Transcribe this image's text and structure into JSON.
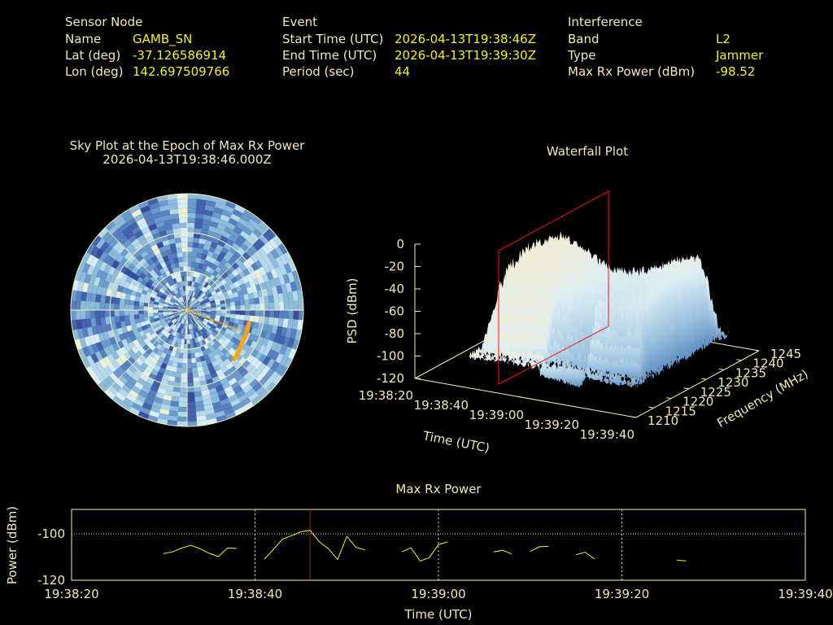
{
  "header": {
    "sensor_node": {
      "title": "Sensor Node",
      "name_label": "Name",
      "name": "GAMB_SN",
      "lat_label": "Lat (deg)",
      "lat": "-37.126586914",
      "lon_label": "Lon (deg)",
      "lon": "142.697509766"
    },
    "event": {
      "title": "Event",
      "start_label": "Start Time (UTC)",
      "start": "2026-04-13T19:38:46Z",
      "end_label": "End Time (UTC)",
      "end": "2026-04-13T19:39:30Z",
      "period_label": "Period (sec)",
      "period": "44"
    },
    "interference": {
      "title": "Interference",
      "band_label": "Band",
      "band": "L2",
      "type_label": "Type",
      "type": "Jammer",
      "power_label": "Max Rx Power (dBm)",
      "power": "-98.52"
    }
  },
  "sky_plot": {
    "title_line1": "Sky Plot at the Epoch of Max Rx Power",
    "title_line2": "2026-04-13T19:38:46.000Z",
    "track_color": "#ffa500"
  },
  "colors": {
    "text": "#f0e8b8",
    "value": "#f2f21a",
    "line": "#f2f21a",
    "marker": "#ff0000",
    "frame": "#f5f0b0"
  },
  "chart_data": [
    {
      "type": "surface",
      "title": "Waterfall Plot",
      "xlabel": "Time (UTC)",
      "ylabel": "Frequency (MHz)",
      "zlabel": "PSD (dBm)",
      "x_ticks": [
        "19:38:20",
        "19:38:40",
        "19:39:00",
        "19:39:20",
        "19:39:40"
      ],
      "y_ticks": [
        "1210",
        "1215",
        "1220",
        "1225",
        "1230",
        "1235",
        "1240",
        "1245"
      ],
      "z_ticks": [
        "0",
        "-20",
        "-40",
        "-60",
        "-80",
        "-100",
        "-120"
      ],
      "zlim": [
        -120,
        0
      ],
      "marker_time": "19:38:46"
    },
    {
      "type": "line",
      "title": "Max Rx Power",
      "xlabel": "Time (UTC)",
      "ylabel": "Power (dBm)",
      "x_ticks": [
        "19:38:20",
        "19:38:40",
        "19:39:00",
        "19:39:20",
        "19:39:40"
      ],
      "y_ticks": [
        "-100",
        "-120"
      ],
      "ylim": [
        -120,
        -89.5
      ],
      "xlim": [
        "19:38:20",
        "19:39:40"
      ],
      "marker_time": "19:38:46",
      "grid": true,
      "segments": [
        {
          "x": [
            "19:38:30",
            "19:38:31",
            "19:38:32",
            "19:38:33",
            "19:38:34",
            "19:38:35",
            "19:38:36",
            "19:38:37",
            "19:38:38"
          ],
          "y": [
            -108.5,
            -107.8,
            -106.1,
            -105.0,
            -106.4,
            -108.4,
            -109.8,
            -106.1,
            -106.3
          ]
        },
        {
          "x": [
            "19:38:41",
            "19:38:42",
            "19:38:43",
            "19:38:44",
            "19:38:45",
            "19:38:46",
            "19:38:47",
            "19:38:48",
            "19:38:49",
            "19:38:50",
            "19:38:51",
            "19:38:52"
          ],
          "y": [
            -111.0,
            -106.7,
            -102.3,
            -100.8,
            -99.1,
            -98.52,
            -103.4,
            -106.4,
            -111.1,
            -101.1,
            -105.8,
            -107.0
          ]
        },
        {
          "x": [
            "19:38:56",
            "19:38:57",
            "19:38:58",
            "19:38:59",
            "19:39:00",
            "19:39:01"
          ],
          "y": [
            -107.8,
            -106.0,
            -111.7,
            -110.3,
            -104.6,
            -103.5
          ]
        },
        {
          "x": [
            "19:39:06",
            "19:39:07",
            "19:39:08"
          ],
          "y": [
            -107.8,
            -107.1,
            -108.7
          ]
        },
        {
          "x": [
            "19:39:10",
            "19:39:11",
            "19:39:12"
          ],
          "y": [
            -107.6,
            -105.6,
            -105.4
          ]
        },
        {
          "x": [
            "19:39:15",
            "19:39:16",
            "19:39:17"
          ],
          "y": [
            -109.0,
            -107.9,
            -110.8
          ]
        },
        {
          "x": [
            "19:39:26",
            "19:39:27"
          ],
          "y": [
            -111.3,
            -111.7
          ]
        }
      ]
    }
  ]
}
